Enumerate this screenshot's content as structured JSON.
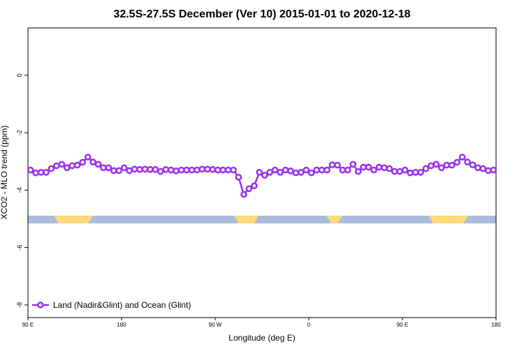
{
  "chart_data": {
    "type": "line",
    "title": "32.5S-27.5S December (Ver 10)   2015-01-01 to 2020-12-18",
    "x_label": "Longitude (deg E)",
    "y_label": "XCO2 - MLO trend (ppm)",
    "xlim": [
      90,
      540
    ],
    "ylim": [
      -8.44,
      1.65
    ],
    "xticks": [
      {
        "value": 90,
        "label": "90 E"
      },
      180,
      {
        "value": 270,
        "label": "90 W"
      },
      {
        "value": 360,
        "label": "0"
      },
      {
        "value": 450,
        "label": "90 E"
      },
      {
        "value": 540,
        "label": "180"
      }
    ],
    "yticks": [
      -8,
      -6,
      -4,
      -2,
      0
    ],
    "grid": false,
    "legend": "bottom-left",
    "x": [
      92.5,
      97.5,
      102.5,
      107.5,
      112.5,
      117.5,
      122.5,
      127.5,
      132.5,
      137.5,
      142.5,
      147.5,
      152.5,
      157.5,
      162.5,
      167.5,
      172.5,
      177.5,
      182.5,
      187.5,
      192.5,
      197.5,
      202.5,
      207.5,
      212.5,
      217.5,
      222.5,
      227.5,
      232.5,
      237.5,
      242.5,
      247.5,
      252.5,
      257.5,
      262.5,
      267.5,
      272.5,
      277.5,
      282.5,
      287.5,
      292.5,
      297.5,
      302.5,
      307.5,
      312.5,
      317.5,
      322.5,
      327.5,
      332.5,
      337.5,
      342.5,
      347.5,
      352.5,
      357.5,
      362.5,
      367.5,
      372.5,
      377.5,
      382.5,
      387.5,
      392.5,
      397.5,
      402.5,
      407.5,
      412.5,
      417.5,
      422.5,
      427.5,
      432.5,
      437.5,
      442.5,
      447.5,
      452.5,
      457.5,
      462.5,
      467.5,
      472.5,
      477.5,
      482.5,
      487.5,
      492.5,
      497.5,
      502.5,
      507.5,
      512.5,
      517.5,
      522.5,
      527.5,
      532.5,
      537.5
    ],
    "series": [
      {
        "name": "Land (Nadir&Glint) and Ocean (Glint)",
        "color": "#9b30f0",
        "values": [
          -3.3,
          -3.4,
          -3.38,
          -3.38,
          -3.25,
          -3.15,
          -3.1,
          -3.22,
          -3.15,
          -3.13,
          -3.03,
          -2.85,
          -3.02,
          -3.1,
          -3.22,
          -3.22,
          -3.32,
          -3.32,
          -3.22,
          -3.32,
          -3.27,
          -3.28,
          -3.27,
          -3.28,
          -3.28,
          -3.35,
          -3.28,
          -3.3,
          -3.33,
          -3.3,
          -3.3,
          -3.3,
          -3.3,
          -3.27,
          -3.27,
          -3.28,
          -3.3,
          -3.3,
          -3.3,
          -3.3,
          -3.55,
          -4.15,
          -3.95,
          -3.85,
          -3.38,
          -3.48,
          -3.38,
          -3.3,
          -3.38,
          -3.3,
          -3.33,
          -3.4,
          -3.38,
          -3.3,
          -3.4,
          -3.3,
          -3.3,
          -3.3,
          -3.12,
          -3.13,
          -3.3,
          -3.3,
          -3.1,
          -3.35,
          -3.2,
          -3.2,
          -3.3,
          -3.2,
          -3.22,
          -3.25,
          -3.35,
          -3.35,
          -3.3,
          -3.4,
          -3.38,
          -3.38,
          -3.25,
          -3.15,
          -3.1,
          -3.22,
          -3.13,
          -3.13,
          -3.03,
          -2.85,
          -3.02,
          -3.12,
          -3.22,
          -3.25,
          -3.32,
          -3.3
        ]
      }
    ]
  }
}
